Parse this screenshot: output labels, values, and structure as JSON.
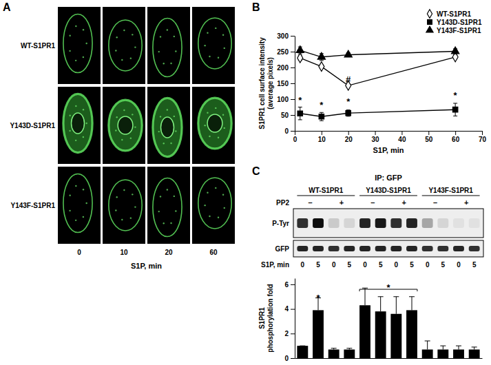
{
  "panel_labels": [
    "A",
    "B",
    "C"
  ],
  "panel_a": {
    "rows": [
      "WT-S1PR1",
      "Y143D-S1PR1",
      "Y143F-S1PR1"
    ],
    "columns": [
      0,
      10,
      20,
      60
    ],
    "x_label": "S1P, min"
  },
  "chart_data": [
    {
      "type": "line",
      "x_label": "S1P, min",
      "y_label": [
        "S1PR1 cell surface intensity",
        "(average pixels)"
      ],
      "xlim": [
        0,
        70
      ],
      "xticks": [
        0,
        10,
        20,
        30,
        40,
        50,
        60,
        70
      ],
      "ylim": [
        0,
        300
      ],
      "yticks": [
        0,
        50,
        100,
        150,
        200,
        250,
        300
      ],
      "legend": "upper right",
      "x": [
        2,
        10,
        20,
        60
      ],
      "series": [
        {
          "name": "WT-S1PR1",
          "color": "#000000",
          "marker": "diamond-open",
          "values": [
            230,
            203,
            143,
            233
          ],
          "errors": [
            7,
            5,
            5,
            6
          ]
        },
        {
          "name": "Y143D-S1PR1",
          "color": "#000000",
          "marker": "square",
          "values": [
            55,
            45,
            56,
            67
          ],
          "errors": [
            20,
            13,
            10,
            20
          ]
        },
        {
          "name": "Y143F-S1PR1",
          "color": "#000000",
          "marker": "triangle",
          "values": [
            254,
            233,
            240,
            251
          ],
          "errors": [
            11,
            11,
            6,
            8
          ]
        }
      ],
      "annotations": [
        {
          "text": "*",
          "x": 2,
          "y": 88
        },
        {
          "text": "*",
          "x": 10,
          "y": 72
        },
        {
          "text": "*",
          "x": 20,
          "y": 82
        },
        {
          "text": "*",
          "x": 60,
          "y": 102
        },
        {
          "text": "#",
          "x": 20,
          "y": 153
        }
      ]
    },
    {
      "type": "bar",
      "y_label": [
        "S1PR1",
        "phosphorylation fold"
      ],
      "categories": [
        null,
        null,
        null,
        null,
        null,
        null,
        null,
        null,
        null,
        null,
        null,
        null
      ],
      "values": [
        1,
        3.9,
        0.7,
        0.7,
        4.3,
        3.8,
        3.6,
        3.9,
        0.7,
        0.7,
        0.7,
        0.7
      ],
      "errors": [
        0,
        1.0,
        0.1,
        0.1,
        1.4,
        1.2,
        1.4,
        1.1,
        0.7,
        0.3,
        0.3,
        0.2
      ],
      "color": "#000000",
      "ylim": [
        0,
        6.5
      ],
      "yticks": [
        0,
        2,
        4,
        6
      ],
      "annotations": [
        {
          "text": "*",
          "from": 1,
          "to": 1,
          "y": 5.1
        },
        {
          "text": "*",
          "from": 4,
          "to": 7,
          "y": 5.6
        }
      ]
    }
  ],
  "blot": {
    "title": "IP: GFP",
    "groups": [
      "WT-S1PR1",
      "Y143D-S1PR1",
      "Y143F-S1PR1"
    ],
    "pp2_label": "PP2",
    "pp2": [
      "–",
      "+",
      "–",
      "+",
      "–",
      "+"
    ],
    "rows": [
      "P-Tyr",
      "GFP"
    ],
    "bands": [
      [
        0.8,
        0.95,
        0.15,
        0.1,
        0.85,
        0.9,
        0.8,
        0.85,
        0.3,
        0.1,
        0.05,
        0.05
      ],
      [
        0.85,
        0.85,
        0.8,
        0.85,
        0.85,
        0.85,
        0.85,
        0.85,
        0.8,
        0.8,
        0.85,
        0.8
      ]
    ],
    "s1p_label": "S1P, min",
    "s1p": [
      0,
      5,
      0,
      5,
      0,
      5,
      0,
      5,
      0,
      5,
      0,
      5
    ]
  }
}
